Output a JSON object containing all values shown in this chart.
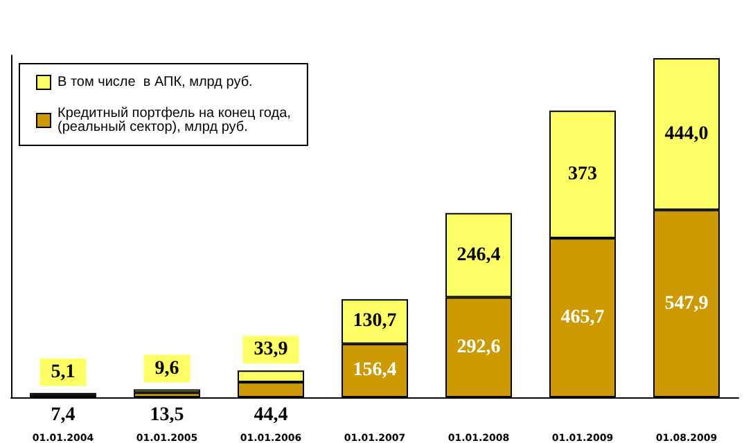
{
  "chart_data": {
    "type": "bar",
    "stacked": true,
    "categories": [
      "01.01.2004",
      "01.01.2005",
      "01.01.2006",
      "01.01.2007",
      "01.01.2008",
      "01.01.2009",
      "01.08.2009"
    ],
    "series": [
      {
        "name": "Кредитный портфель на конец года, (реальный сектор), млрд руб.",
        "color": "#cc9900",
        "values": [
          7.4,
          13.5,
          44.4,
          156.4,
          292.6,
          465.7,
          547.9
        ],
        "value_labels": [
          "7,4",
          "13,5",
          "44,4",
          "156,4",
          "292,6",
          "465,7",
          "547,9"
        ]
      },
      {
        "name": "В том числе  в АПК, млрд руб.",
        "color": "#ffff66",
        "values": [
          5.1,
          9.6,
          33.9,
          130.7,
          246.4,
          373,
          444.0
        ],
        "value_labels": [
          "5,1",
          "9,6",
          "33,9",
          "130,7",
          "246,4",
          "373",
          "444,0"
        ]
      }
    ],
    "legend": "top left",
    "tick_labels": "x",
    "grid": false
  }
}
